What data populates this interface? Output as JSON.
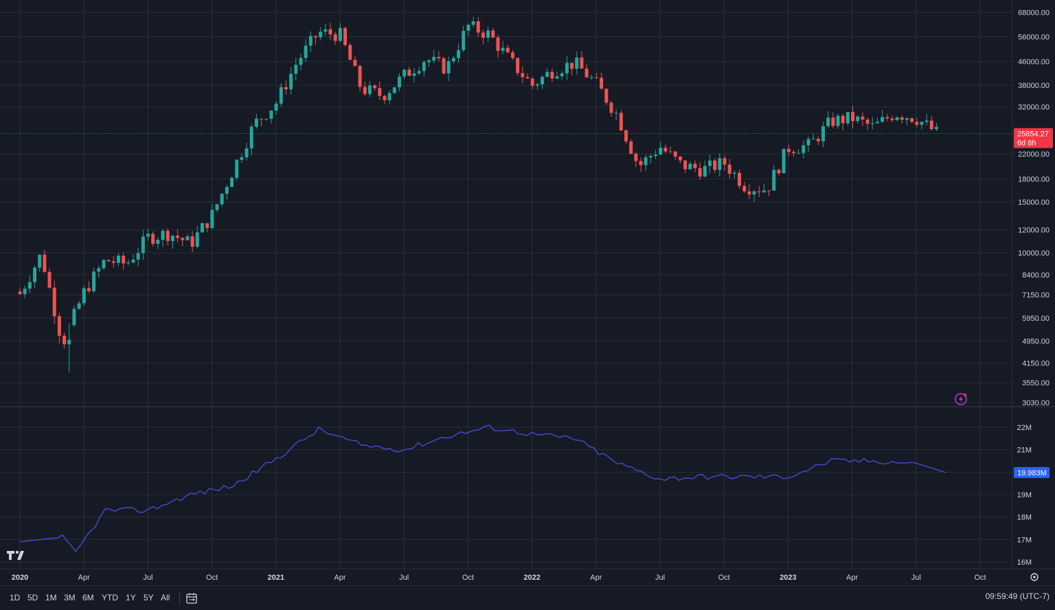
{
  "chart_data": [
    {
      "type": "candlestick",
      "title": "",
      "x_labels": [
        "2020",
        "Apr",
        "Jul",
        "Oct",
        "2021",
        "Apr",
        "Jul",
        "Oct",
        "2022",
        "Apr",
        "Jul",
        "Oct",
        "2023",
        "Apr",
        "Jul",
        "Oct"
      ],
      "price_axis": {
        "scale": "log",
        "ticks": [
          "68000.00",
          "56000.00",
          "46000.00",
          "38000.00",
          "32000.00",
          "22000.00",
          "18000.00",
          "15000.00",
          "12000.00",
          "10000.00",
          "8400.00",
          "7150.00",
          "5950.00",
          "4950.00",
          "4150.00",
          "3550.00",
          "3030.00"
        ],
        "tick_values": [
          68000,
          56000,
          46000,
          38000,
          32000,
          22000,
          18000,
          15000,
          12000,
          10000,
          8400,
          7150,
          5950,
          4950,
          4150,
          3550,
          3030
        ]
      },
      "last_price": {
        "value": "25854.27",
        "countdown": "6d 8h",
        "color": "#f23645"
      },
      "grid": true,
      "weekly_close_approx": [
        {
          "date": "2020-01",
          "close": 7200
        },
        {
          "date": "2020-02",
          "close": 9900
        },
        {
          "date": "2020-03",
          "close": 4850
        },
        {
          "date": "2020-04",
          "close": 7300
        },
        {
          "date": "2020-05",
          "close": 9450
        },
        {
          "date": "2020-06",
          "close": 9150
        },
        {
          "date": "2020-07",
          "close": 11300
        },
        {
          "date": "2020-08",
          "close": 11700
        },
        {
          "date": "2020-09",
          "close": 10750
        },
        {
          "date": "2020-10",
          "close": 13500
        },
        {
          "date": "2020-11",
          "close": 19500
        },
        {
          "date": "2020-12",
          "close": 28000
        },
        {
          "date": "2021-01",
          "close": 33000
        },
        {
          "date": "2021-02",
          "close": 46000
        },
        {
          "date": "2021-03",
          "close": 58000
        },
        {
          "date": "2021-04",
          "close": 57000
        },
        {
          "date": "2021-05",
          "close": 37000
        },
        {
          "date": "2021-06",
          "close": 35000
        },
        {
          "date": "2021-07",
          "close": 41000
        },
        {
          "date": "2021-08",
          "close": 47000
        },
        {
          "date": "2021-09",
          "close": 43500
        },
        {
          "date": "2021-10",
          "close": 61000
        },
        {
          "date": "2021-11",
          "close": 57000
        },
        {
          "date": "2021-12",
          "close": 46000
        },
        {
          "date": "2022-01",
          "close": 38000
        },
        {
          "date": "2022-02",
          "close": 43000
        },
        {
          "date": "2022-03",
          "close": 45500
        },
        {
          "date": "2022-04",
          "close": 38500
        },
        {
          "date": "2022-05",
          "close": 30000
        },
        {
          "date": "2022-06",
          "close": 19900
        },
        {
          "date": "2022-07",
          "close": 23300
        },
        {
          "date": "2022-08",
          "close": 20100
        },
        {
          "date": "2022-09",
          "close": 19400
        },
        {
          "date": "2022-10",
          "close": 20500
        },
        {
          "date": "2022-11",
          "close": 17000
        },
        {
          "date": "2022-12",
          "close": 16600
        },
        {
          "date": "2023-01",
          "close": 23100
        },
        {
          "date": "2023-02",
          "close": 23500
        },
        {
          "date": "2023-03",
          "close": 28500
        },
        {
          "date": "2023-04",
          "close": 29300
        },
        {
          "date": "2023-05",
          "close": 27200
        },
        {
          "date": "2023-06",
          "close": 30500
        },
        {
          "date": "2023-07",
          "close": 29300
        },
        {
          "date": "2023-08",
          "close": 25900
        }
      ]
    },
    {
      "type": "line",
      "value_axis": {
        "ticks": [
          "22M",
          "21M",
          "20M",
          "19M",
          "18M",
          "17M",
          "16M"
        ],
        "tick_values": [
          22,
          21,
          20,
          19,
          18,
          17,
          16
        ]
      },
      "last_value": {
        "value": "19.983M",
        "color": "#2962ff"
      },
      "line_color": "#4a4fd8",
      "series_approx_M": [
        {
          "date": "2020-01",
          "v": 16.9
        },
        {
          "date": "2020-03",
          "v": 17.1
        },
        {
          "date": "2020-03b",
          "v": 16.4
        },
        {
          "date": "2020-05",
          "v": 18.3
        },
        {
          "date": "2020-07",
          "v": 18.3
        },
        {
          "date": "2020-09",
          "v": 19.0
        },
        {
          "date": "2020-11",
          "v": 19.4
        },
        {
          "date": "2021-01",
          "v": 20.6
        },
        {
          "date": "2021-03",
          "v": 21.9
        },
        {
          "date": "2021-05",
          "v": 21.2
        },
        {
          "date": "2021-07",
          "v": 21.0
        },
        {
          "date": "2021-09",
          "v": 21.6
        },
        {
          "date": "2021-11",
          "v": 22.0
        },
        {
          "date": "2022-01",
          "v": 21.7
        },
        {
          "date": "2022-03",
          "v": 21.5
        },
        {
          "date": "2022-05",
          "v": 20.4
        },
        {
          "date": "2022-07",
          "v": 19.7
        },
        {
          "date": "2022-09",
          "v": 19.8
        },
        {
          "date": "2022-11",
          "v": 19.8
        },
        {
          "date": "2023-01",
          "v": 19.8
        },
        {
          "date": "2023-03",
          "v": 20.5
        },
        {
          "date": "2023-05",
          "v": 20.5
        },
        {
          "date": "2023-07",
          "v": 20.4
        },
        {
          "date": "2023-08",
          "v": 19.98
        }
      ]
    }
  ],
  "colors": {
    "background": "#161a25",
    "grid": "#2a2e39",
    "up": "#26a69a",
    "down": "#ef5350",
    "text": "#d1d4dc"
  },
  "toolbar": {
    "ranges": [
      "1D",
      "5D",
      "1M",
      "3M",
      "6M",
      "YTD",
      "1Y",
      "5Y",
      "All"
    ],
    "clock": "09:59:49 (UTC-7)"
  },
  "icons": {
    "logo": "tradingview-logo-icon",
    "calendar": "calendar-range-icon",
    "settings": "gear-icon",
    "alert": "flash-alert-icon"
  }
}
